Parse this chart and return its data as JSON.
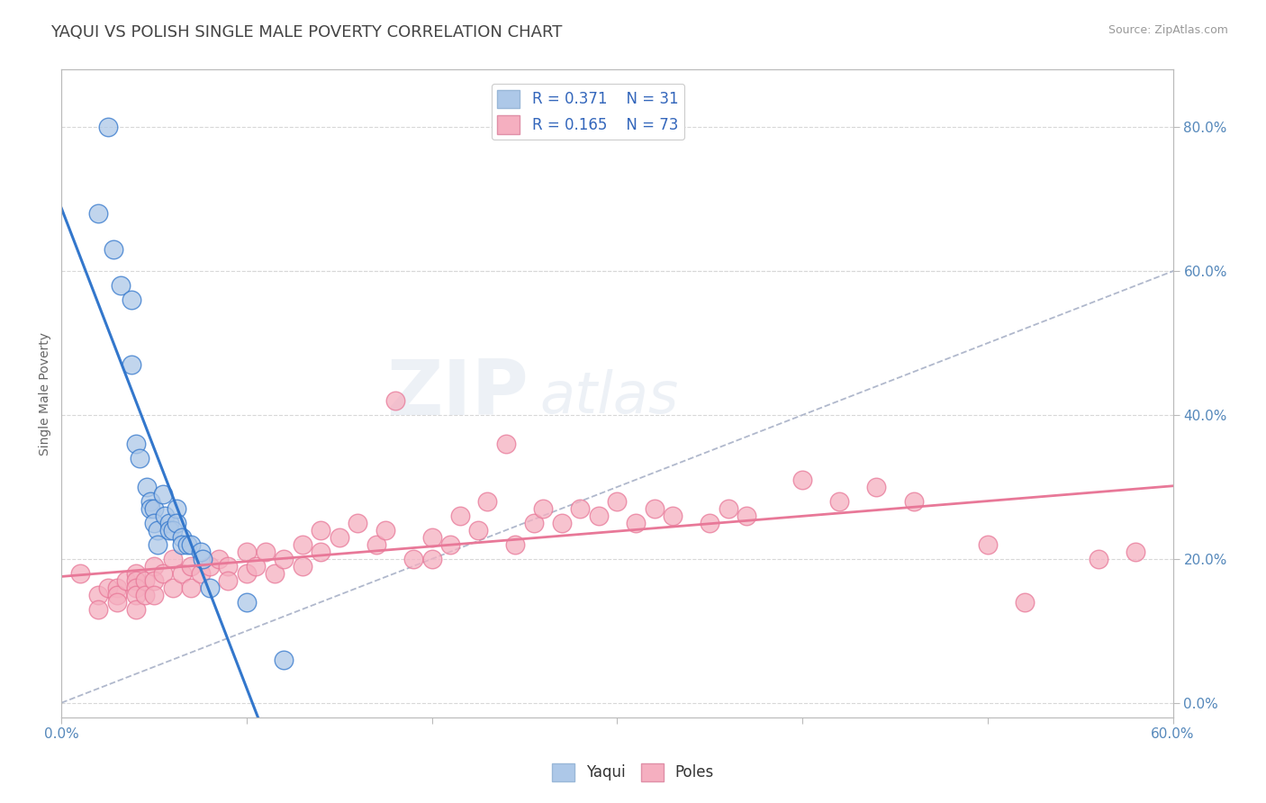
{
  "title": "YAQUI VS POLISH SINGLE MALE POVERTY CORRELATION CHART",
  "source": "Source: ZipAtlas.com",
  "ylabel": "Single Male Poverty",
  "xlim": [
    0.0,
    0.6
  ],
  "ylim": [
    -0.02,
    0.88
  ],
  "xticks": [
    0.0,
    0.1,
    0.2,
    0.3,
    0.4,
    0.5,
    0.6
  ],
  "xticklabels": [
    "0.0%",
    "",
    "",
    "",
    "",
    "",
    "60.0%"
  ],
  "yticks_right": [
    0.0,
    0.2,
    0.4,
    0.6,
    0.8
  ],
  "yticklabels_right": [
    "0.0%",
    "20.0%",
    "40.0%",
    "60.0%",
    "80.0%"
  ],
  "legend_r1": "R = 0.371",
  "legend_n1": "N = 31",
  "legend_r2": "R = 0.165",
  "legend_n2": "N = 73",
  "color_yaqui": "#adc8e8",
  "color_poles": "#f5afc0",
  "color_yaqui_line": "#3377cc",
  "color_poles_line": "#e87898",
  "color_diag_line": "#b0b8cc",
  "watermark_zip": "ZIP",
  "watermark_atlas": "atlas",
  "yaqui_x": [
    0.025,
    0.02,
    0.028,
    0.032,
    0.038,
    0.038,
    0.04,
    0.042,
    0.046,
    0.048,
    0.048,
    0.05,
    0.05,
    0.052,
    0.052,
    0.055,
    0.056,
    0.058,
    0.058,
    0.06,
    0.062,
    0.062,
    0.065,
    0.065,
    0.068,
    0.07,
    0.075,
    0.076,
    0.08,
    0.1,
    0.12
  ],
  "yaqui_y": [
    0.8,
    0.68,
    0.63,
    0.58,
    0.56,
    0.47,
    0.36,
    0.34,
    0.3,
    0.28,
    0.27,
    0.27,
    0.25,
    0.24,
    0.22,
    0.29,
    0.26,
    0.25,
    0.24,
    0.24,
    0.27,
    0.25,
    0.23,
    0.22,
    0.22,
    0.22,
    0.21,
    0.2,
    0.16,
    0.14,
    0.06
  ],
  "poles_x": [
    0.01,
    0.02,
    0.02,
    0.025,
    0.03,
    0.03,
    0.03,
    0.035,
    0.04,
    0.04,
    0.04,
    0.04,
    0.04,
    0.045,
    0.045,
    0.05,
    0.05,
    0.05,
    0.055,
    0.06,
    0.06,
    0.065,
    0.07,
    0.07,
    0.075,
    0.08,
    0.085,
    0.09,
    0.09,
    0.1,
    0.1,
    0.105,
    0.11,
    0.115,
    0.12,
    0.13,
    0.13,
    0.14,
    0.14,
    0.15,
    0.16,
    0.17,
    0.175,
    0.18,
    0.19,
    0.2,
    0.2,
    0.21,
    0.215,
    0.225,
    0.23,
    0.24,
    0.245,
    0.255,
    0.26,
    0.27,
    0.28,
    0.29,
    0.3,
    0.31,
    0.32,
    0.33,
    0.35,
    0.36,
    0.37,
    0.4,
    0.42,
    0.44,
    0.46,
    0.5,
    0.52,
    0.56,
    0.58
  ],
  "poles_y": [
    0.18,
    0.15,
    0.13,
    0.16,
    0.16,
    0.15,
    0.14,
    0.17,
    0.18,
    0.17,
    0.16,
    0.15,
    0.13,
    0.17,
    0.15,
    0.19,
    0.17,
    0.15,
    0.18,
    0.2,
    0.16,
    0.18,
    0.19,
    0.16,
    0.18,
    0.19,
    0.2,
    0.19,
    0.17,
    0.21,
    0.18,
    0.19,
    0.21,
    0.18,
    0.2,
    0.22,
    0.19,
    0.24,
    0.21,
    0.23,
    0.25,
    0.22,
    0.24,
    0.42,
    0.2,
    0.23,
    0.2,
    0.22,
    0.26,
    0.24,
    0.28,
    0.36,
    0.22,
    0.25,
    0.27,
    0.25,
    0.27,
    0.26,
    0.28,
    0.25,
    0.27,
    0.26,
    0.25,
    0.27,
    0.26,
    0.31,
    0.28,
    0.3,
    0.28,
    0.22,
    0.14,
    0.2,
    0.21
  ],
  "grid_color": "#d8d8d8",
  "background_color": "#ffffff",
  "title_color": "#444444",
  "axis_color": "#bbbbbb",
  "tick_color": "#5588bb",
  "title_fontsize": 13,
  "label_fontsize": 10
}
